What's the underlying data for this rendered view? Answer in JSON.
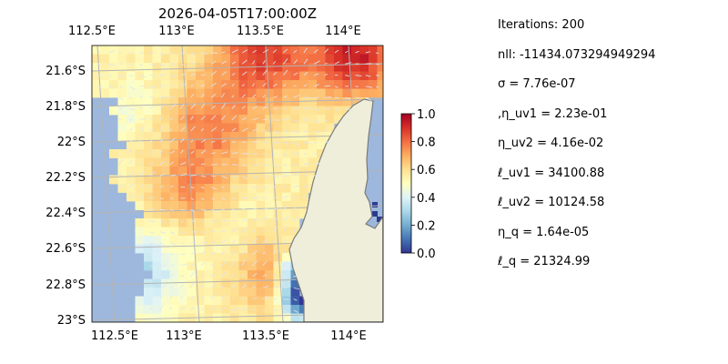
{
  "chart_data": {
    "type": "heatmap",
    "title": "2026-04-05T17:00:00Z",
    "xlabel": "",
    "ylabel": "",
    "x_ticks": [
      "112.5°E",
      "113°E",
      "113.5°E",
      "114°E"
    ],
    "x_tick_values": [
      112.5,
      113.0,
      113.5,
      114.0
    ],
    "y_ticks": [
      "21.6°S",
      "21.8°S",
      "22°S",
      "22.2°S",
      "22.4°S",
      "22.6°S",
      "22.8°S",
      "23°S"
    ],
    "y_tick_values": [
      -21.6,
      -21.8,
      -22.0,
      -22.2,
      -22.4,
      -22.6,
      -22.8,
      -23.0
    ],
    "xlim": [
      112.5,
      114.2
    ],
    "ylim": [
      -23.0,
      -21.5
    ],
    "grid": true,
    "colormap": "RdYlBu_r",
    "colorbar": {
      "range": [
        0.0,
        1.0
      ],
      "ticks": [
        "0.0",
        "0.2",
        "0.4",
        "0.6",
        "0.8",
        "1.0"
      ]
    },
    "overlay": "velocity quiver arrows (white)",
    "colors": {
      "ocean": "#9db8dc",
      "land": "#efeedb",
      "coast": "#7b7b7b",
      "grid": "#b4b4b4"
    }
  },
  "stats": [
    "Iterations: 200",
    "nll: -11434.073294949294",
    "σ = 7.76e-07",
    ",η_uv1 = 2.23e-01",
    "η_uv2 = 4.16e-02",
    "ℓ_uv1 = 34100.88",
    "ℓ_uv2 = 10124.58",
    "η_q = 1.64e-05",
    "ℓ_q = 21324.99"
  ]
}
